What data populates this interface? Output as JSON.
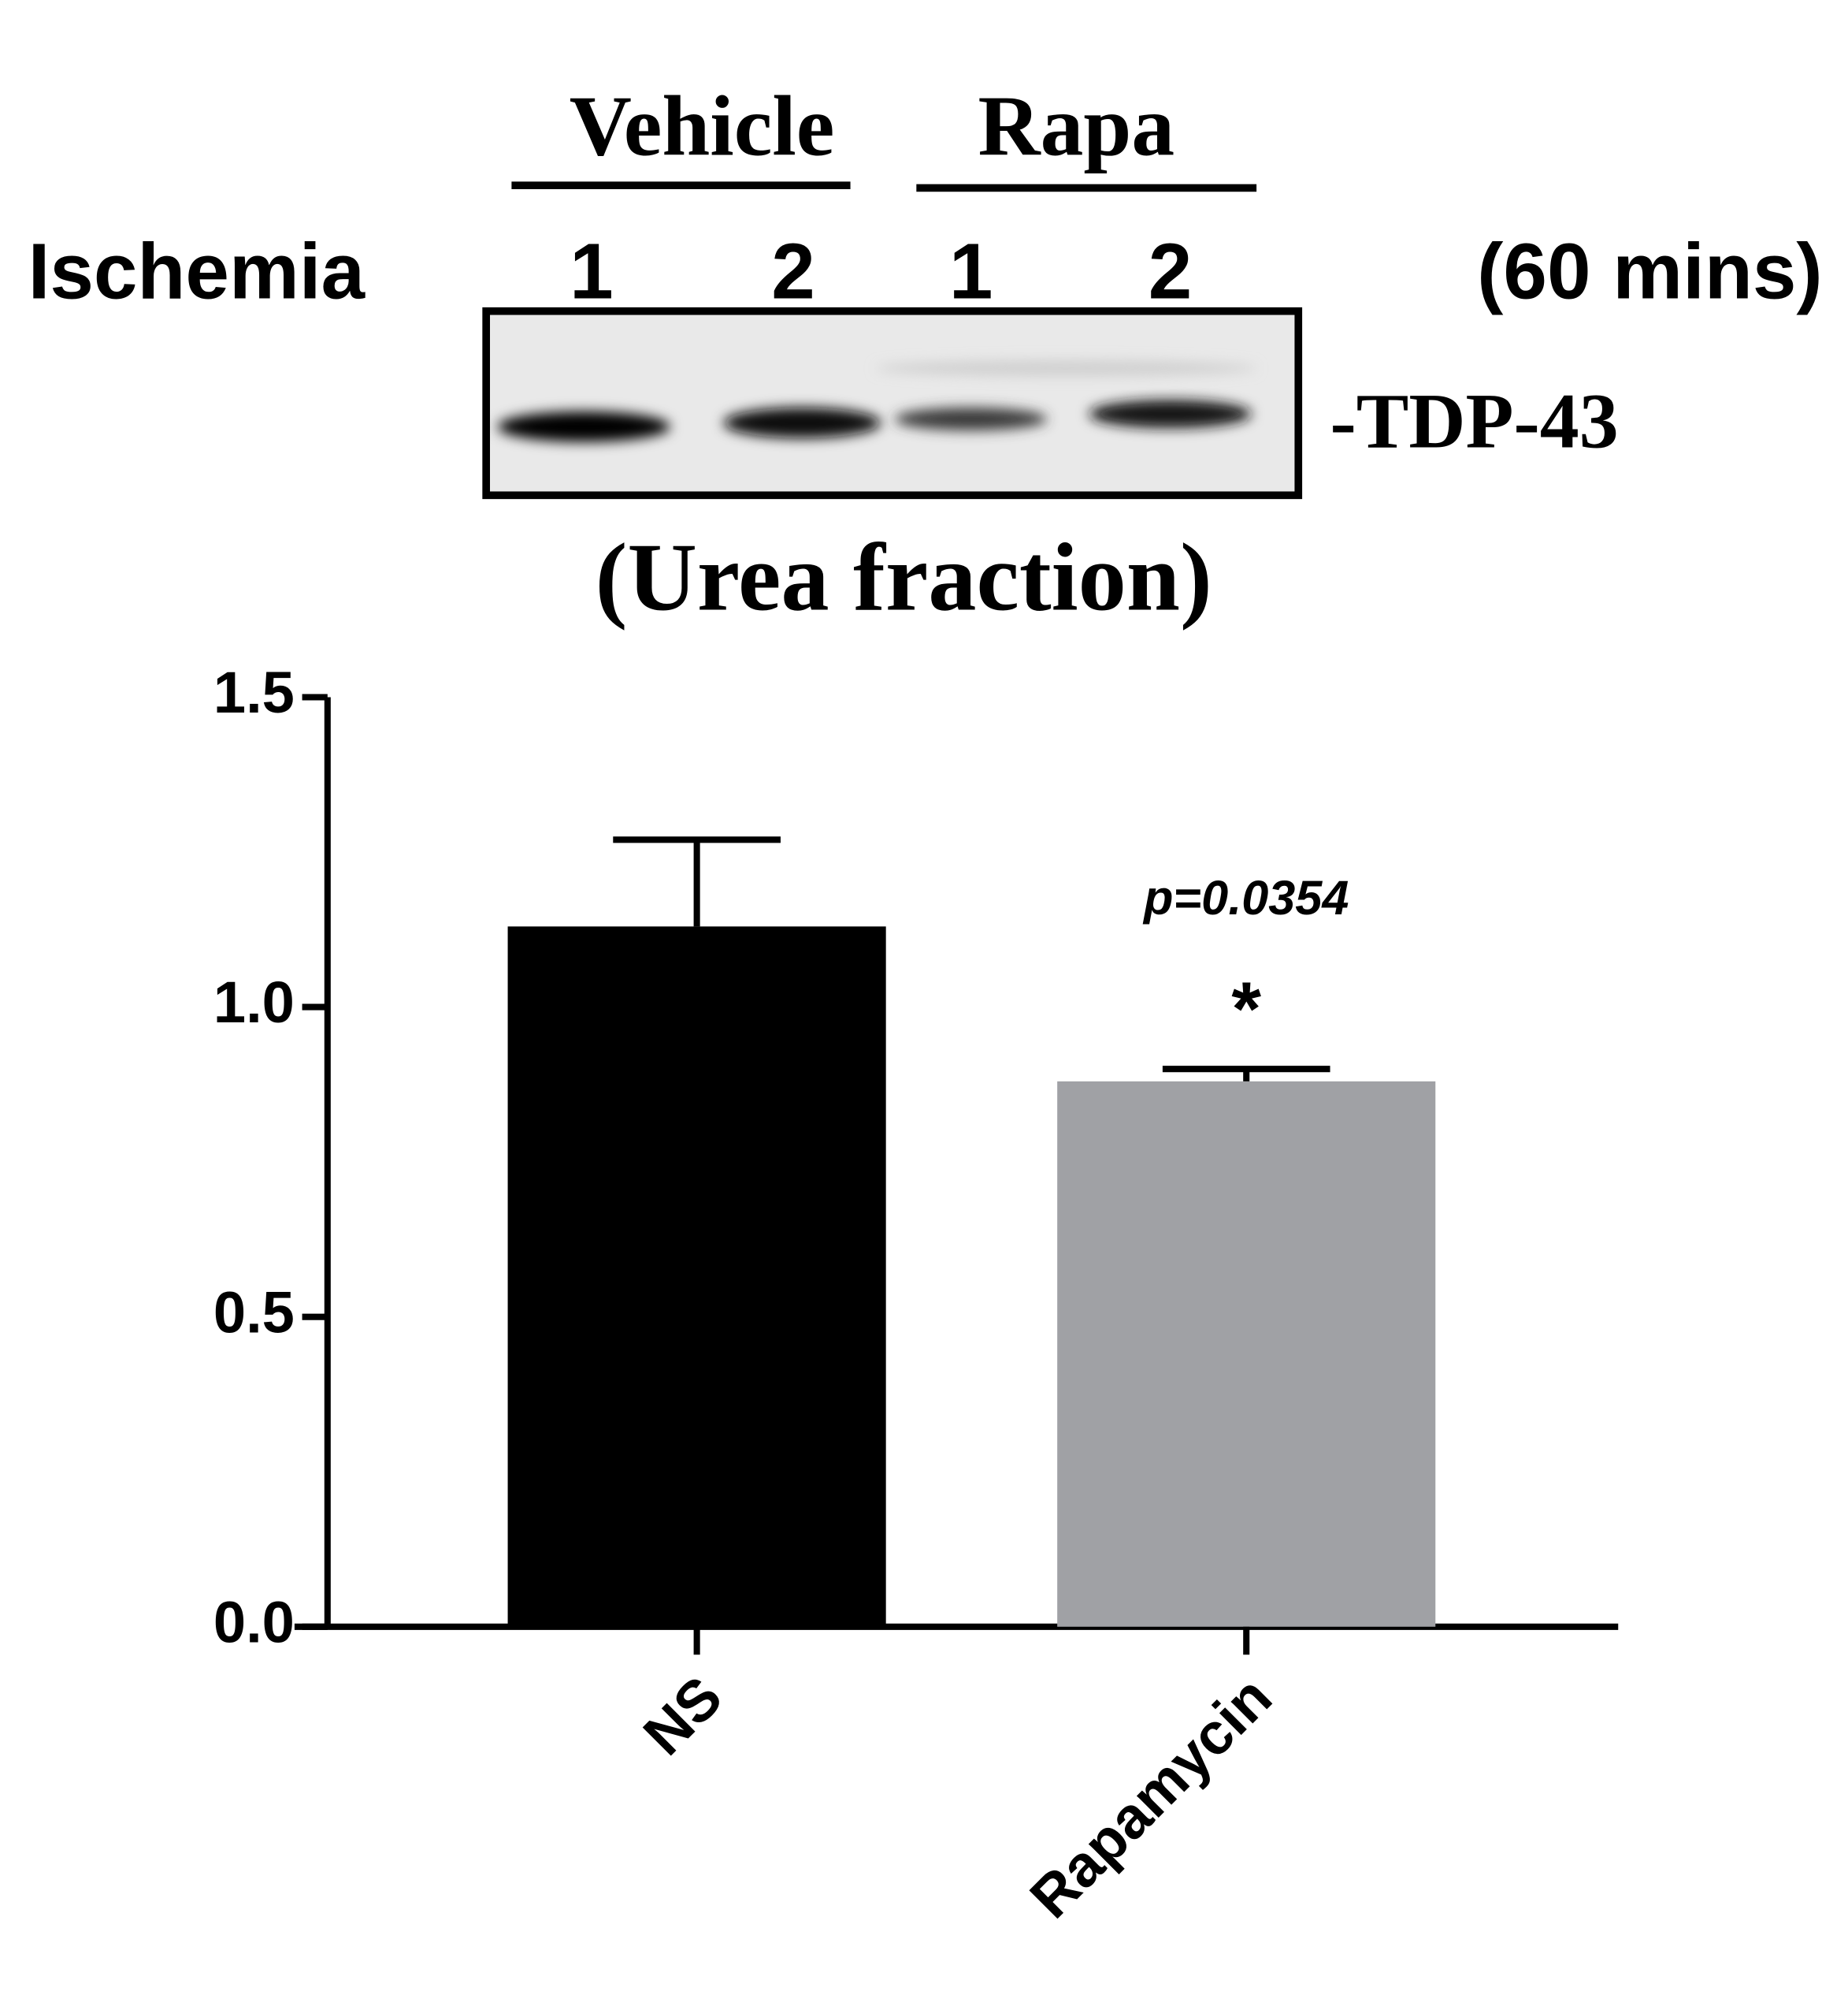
{
  "blot": {
    "groups": [
      "Vehicle",
      "Rapa"
    ],
    "row_label": "Ischemia",
    "lanes": [
      "1",
      "2",
      "1",
      "2"
    ],
    "duration": "(60 mins)",
    "band_label": "-TDP-43",
    "fraction": "(Urea fraction)"
  },
  "chart_data": {
    "type": "bar",
    "categories": [
      "NS",
      "Rapamycin"
    ],
    "values": [
      1.13,
      0.88
    ],
    "errors": [
      0.14,
      0.02
    ],
    "colors": [
      "#000000",
      "#a0a1a5"
    ],
    "ylim": [
      0,
      1.5
    ],
    "yticks": [
      {
        "value": 0,
        "label": "0.0"
      },
      0.5,
      {
        "value": 1,
        "label": "1.0"
      },
      1.5
    ],
    "annotations": [
      "p=0.0354",
      "*"
    ]
  }
}
